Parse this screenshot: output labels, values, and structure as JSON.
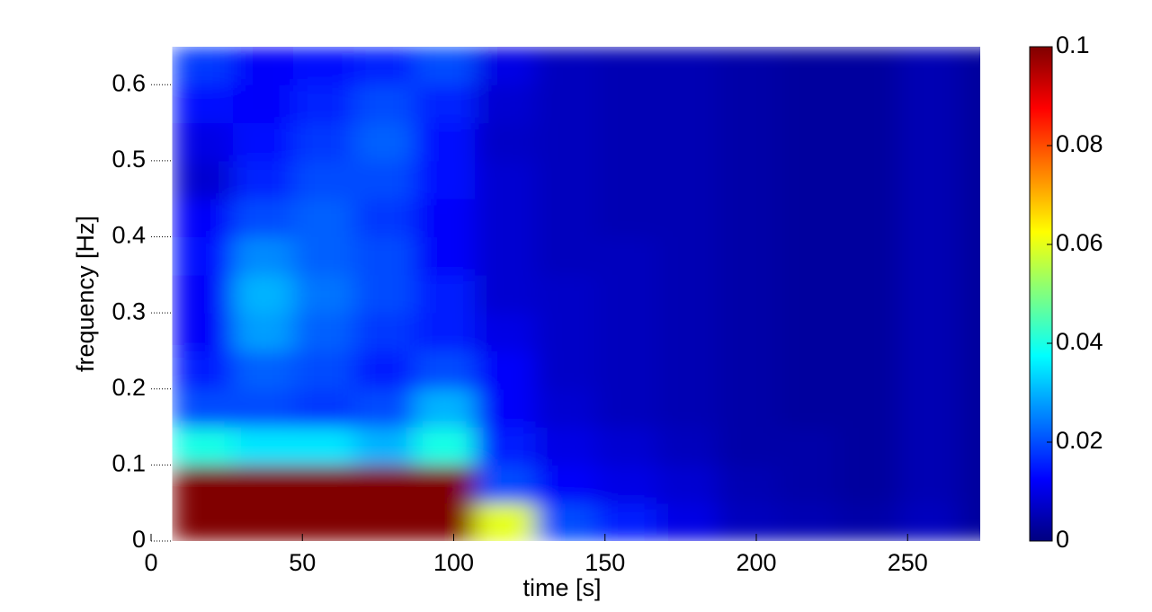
{
  "chart_data": {
    "type": "heatmap",
    "xlabel": "time [s]",
    "ylabel": "frequency [Hz]",
    "x": [
      17,
      37,
      57,
      77,
      97,
      117,
      137,
      157,
      177,
      197,
      217,
      237,
      257,
      277
    ],
    "y": [
      0.025,
      0.075,
      0.125,
      0.175,
      0.225,
      0.275,
      0.325,
      0.375,
      0.425,
      0.475,
      0.525,
      0.575,
      0.625
    ],
    "z": [
      [
        0.12,
        0.12,
        0.12,
        0.12,
        0.12,
        0.06,
        0.02,
        0.015,
        0.01,
        0.006,
        0.005,
        0.004,
        0.006,
        0.003
      ],
      [
        0.12,
        0.12,
        0.12,
        0.12,
        0.1,
        0.02,
        0.012,
        0.01,
        0.008,
        0.005,
        0.004,
        0.003,
        0.005,
        0.003
      ],
      [
        0.04,
        0.035,
        0.035,
        0.03,
        0.04,
        0.015,
        0.01,
        0.008,
        0.006,
        0.004,
        0.004,
        0.003,
        0.005,
        0.003
      ],
      [
        0.02,
        0.02,
        0.018,
        0.02,
        0.03,
        0.012,
        0.008,
        0.006,
        0.005,
        0.004,
        0.003,
        0.003,
        0.005,
        0.003
      ],
      [
        0.015,
        0.022,
        0.02,
        0.015,
        0.02,
        0.012,
        0.007,
        0.006,
        0.005,
        0.004,
        0.003,
        0.003,
        0.005,
        0.003
      ],
      [
        0.012,
        0.028,
        0.022,
        0.018,
        0.015,
        0.01,
        0.007,
        0.006,
        0.005,
        0.004,
        0.003,
        0.003,
        0.005,
        0.003
      ],
      [
        0.012,
        0.03,
        0.024,
        0.02,
        0.015,
        0.008,
        0.007,
        0.006,
        0.005,
        0.004,
        0.003,
        0.003,
        0.005,
        0.003
      ],
      [
        0.014,
        0.026,
        0.022,
        0.02,
        0.012,
        0.008,
        0.006,
        0.006,
        0.005,
        0.004,
        0.003,
        0.003,
        0.005,
        0.003
      ],
      [
        0.012,
        0.02,
        0.022,
        0.018,
        0.012,
        0.008,
        0.006,
        0.005,
        0.005,
        0.004,
        0.003,
        0.003,
        0.005,
        0.003
      ],
      [
        0.008,
        0.016,
        0.02,
        0.02,
        0.014,
        0.008,
        0.006,
        0.005,
        0.005,
        0.004,
        0.003,
        0.003,
        0.005,
        0.003
      ],
      [
        0.01,
        0.014,
        0.018,
        0.022,
        0.014,
        0.007,
        0.006,
        0.005,
        0.005,
        0.004,
        0.003,
        0.003,
        0.005,
        0.003
      ],
      [
        0.014,
        0.012,
        0.016,
        0.02,
        0.016,
        0.008,
        0.006,
        0.005,
        0.005,
        0.004,
        0.003,
        0.003,
        0.005,
        0.003
      ],
      [
        0.018,
        0.012,
        0.014,
        0.016,
        0.02,
        0.01,
        0.006,
        0.005,
        0.005,
        0.004,
        0.003,
        0.003,
        0.005,
        0.003
      ]
    ],
    "xlim": [
      0,
      274
    ],
    "xticks": [
      0,
      50,
      100,
      150,
      200,
      250
    ],
    "ylim": [
      0,
      0.65
    ],
    "yticks": [
      0,
      0.1,
      0.2,
      0.3,
      0.4,
      0.5,
      0.6
    ],
    "clim": [
      0,
      0.1
    ],
    "cticks": [
      0,
      0.02,
      0.04,
      0.06,
      0.08,
      0.1
    ],
    "colormap": "jet"
  }
}
